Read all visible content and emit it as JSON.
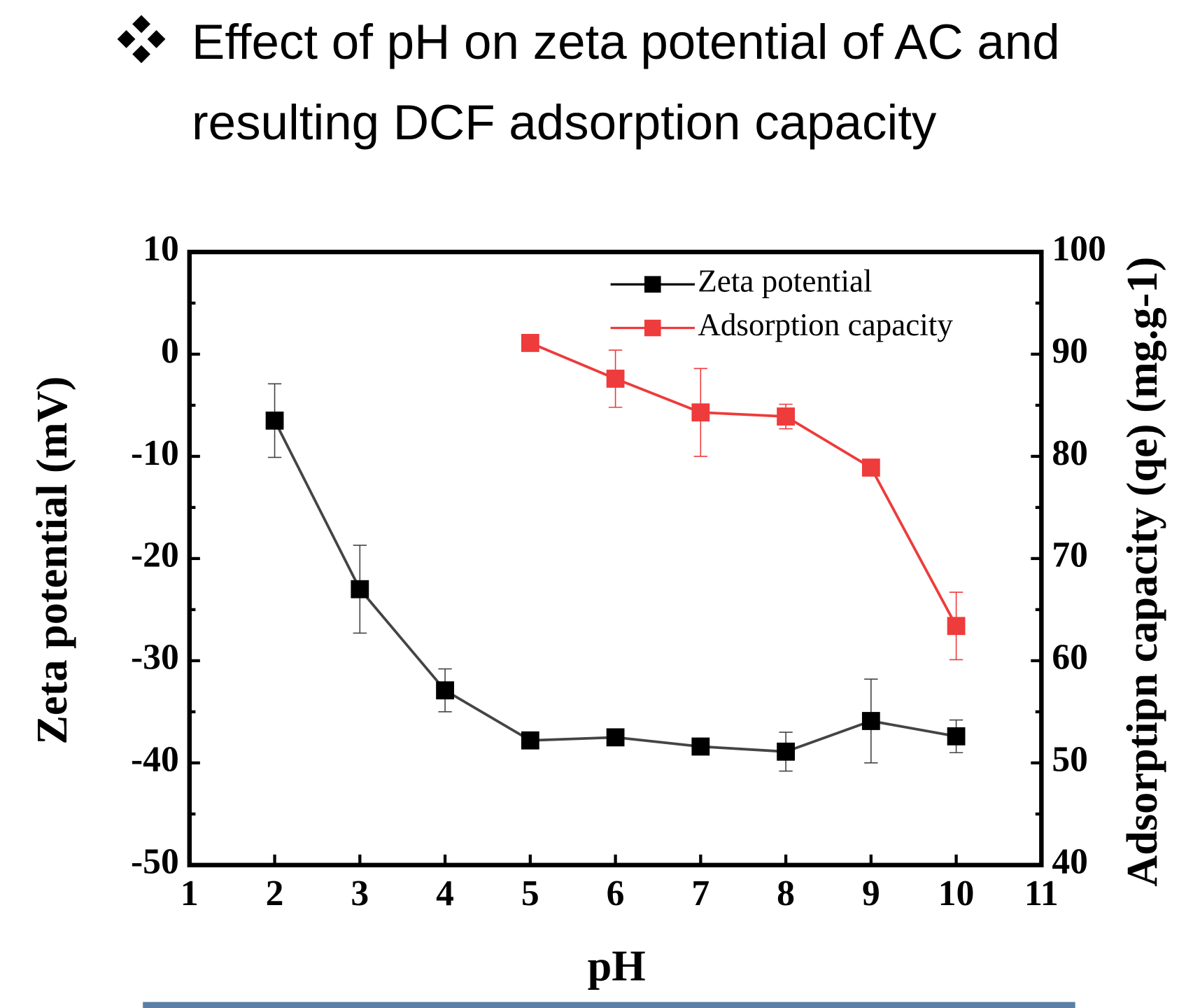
{
  "chart_data": {
    "type": "line",
    "title": "Effect of pH on zeta potential of AC and resulting DCF adsorption capacity",
    "x_label": "pH",
    "y_label": "Zeta potential (mV)",
    "y2_label": "Adsorptipn capacity (qe) (mg.g-1)",
    "xlim": [
      1,
      11
    ],
    "xticks": [
      1,
      2,
      3,
      4,
      5,
      6,
      7,
      8,
      9,
      10,
      11
    ],
    "ylim": [
      -50,
      10
    ],
    "yticks": [
      -50,
      -40,
      -30,
      -20,
      -10,
      0,
      10
    ],
    "y2lim": [
      40,
      100
    ],
    "y2ticks": [
      40,
      50,
      60,
      70,
      80,
      90,
      100
    ],
    "legend": "upper right",
    "series": [
      {
        "name": "Zeta potential",
        "color": "#000000",
        "line_color": "#444444",
        "x": [
          2,
          3,
          4,
          5,
          6,
          7,
          8,
          9,
          10
        ],
        "values": [
          -6.5,
          -23,
          -32.9,
          -37.8,
          -37.5,
          -38.4,
          -38.9,
          -35.9,
          -37.4
        ],
        "errors": [
          3.6,
          4.3,
          2.1,
          0.5,
          0.5,
          0.5,
          1.9,
          4.1,
          1.6
        ]
      },
      {
        "name": "Adsorption capacity",
        "color": "#ee3b3b",
        "line_color": "#ee3b3b",
        "axis": "y2",
        "x": [
          5,
          6,
          7,
          8,
          9,
          10
        ],
        "values": [
          91.1,
          87.6,
          84.3,
          83.9,
          78.9,
          63.4
        ],
        "errors": [
          0.5,
          2.8,
          4.3,
          1.2,
          0.5,
          3.3
        ]
      }
    ]
  }
}
